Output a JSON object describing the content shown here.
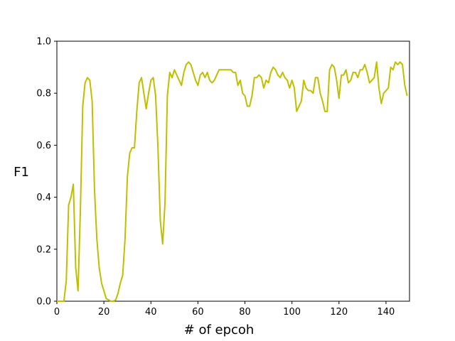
{
  "chart_data": {
    "type": "line",
    "xlabel": "# of epcoh",
    "ylabel": "F1",
    "x": [
      0,
      1,
      2,
      3,
      4,
      5,
      6,
      7,
      8,
      9,
      10,
      11,
      12,
      13,
      14,
      15,
      16,
      17,
      18,
      19,
      20,
      21,
      22,
      23,
      24,
      25,
      26,
      27,
      28,
      29,
      30,
      31,
      32,
      33,
      34,
      35,
      36,
      37,
      38,
      39,
      40,
      41,
      42,
      43,
      44,
      45,
      46,
      47,
      48,
      49,
      50,
      51,
      52,
      53,
      54,
      55,
      56,
      57,
      58,
      59,
      60,
      61,
      62,
      63,
      64,
      65,
      66,
      67,
      68,
      69,
      70,
      71,
      72,
      73,
      74,
      75,
      76,
      77,
      78,
      79,
      80,
      81,
      82,
      83,
      84,
      85,
      86,
      87,
      88,
      89,
      90,
      91,
      92,
      93,
      94,
      95,
      96,
      97,
      98,
      99,
      100,
      101,
      102,
      103,
      104,
      105,
      106,
      107,
      108,
      109,
      110,
      111,
      112,
      113,
      114,
      115,
      116,
      117,
      118,
      119,
      120,
      121,
      122,
      123,
      124,
      125,
      126,
      127,
      128,
      129,
      130,
      131,
      132,
      133,
      134,
      135,
      136,
      137,
      138,
      139,
      140,
      141,
      142,
      143,
      144,
      145,
      146,
      147,
      148,
      149
    ],
    "series": [
      {
        "color": "#bfbf00",
        "values": [
          0,
          0,
          0,
          0,
          0.08,
          0.37,
          0.4,
          0.45,
          0.13,
          0.04,
          0.35,
          0.75,
          0.84,
          0.86,
          0.85,
          0.77,
          0.43,
          0.24,
          0.13,
          0.07,
          0.04,
          0.01,
          0.005,
          0,
          0,
          0.005,
          0.03,
          0.07,
          0.1,
          0.24,
          0.48,
          0.57,
          0.59,
          0.59,
          0.73,
          0.84,
          0.86,
          0.8,
          0.74,
          0.8,
          0.85,
          0.86,
          0.79,
          0.59,
          0.31,
          0.22,
          0.38,
          0.79,
          0.88,
          0.86,
          0.89,
          0.87,
          0.85,
          0.83,
          0.88,
          0.91,
          0.92,
          0.91,
          0.88,
          0.85,
          0.83,
          0.87,
          0.88,
          0.86,
          0.88,
          0.85,
          0.84,
          0.85,
          0.87,
          0.89,
          0.89,
          0.89,
          0.89,
          0.89,
          0.89,
          0.88,
          0.88,
          0.83,
          0.85,
          0.8,
          0.79,
          0.75,
          0.75,
          0.79,
          0.86,
          0.86,
          0.87,
          0.86,
          0.82,
          0.85,
          0.84,
          0.88,
          0.9,
          0.89,
          0.87,
          0.86,
          0.88,
          0.86,
          0.85,
          0.82,
          0.85,
          0.82,
          0.73,
          0.75,
          0.77,
          0.85,
          0.82,
          0.81,
          0.81,
          0.8,
          0.86,
          0.86,
          0.8,
          0.77,
          0.73,
          0.73,
          0.89,
          0.91,
          0.9,
          0.85,
          0.78,
          0.87,
          0.87,
          0.89,
          0.84,
          0.85,
          0.88,
          0.88,
          0.86,
          0.89,
          0.89,
          0.91,
          0.88,
          0.84,
          0.85,
          0.86,
          0.92,
          0.82,
          0.76,
          0.8,
          0.81,
          0.82,
          0.9,
          0.89,
          0.92,
          0.91,
          0.92,
          0.91,
          0.83,
          0.79
        ]
      }
    ],
    "xlim": [
      0,
      150
    ],
    "ylim": [
      0,
      1
    ],
    "xticks": [
      0,
      20,
      40,
      60,
      80,
      100,
      120,
      140
    ],
    "yticks": [
      {
        "value": 0,
        "label": "0.0"
      },
      {
        "value": 0.2,
        "label": "0.2"
      },
      {
        "value": 0.4,
        "label": "0.4"
      },
      {
        "value": 0.6,
        "label": "0.6"
      },
      {
        "value": 0.8,
        "label": "0.8"
      },
      {
        "value": 1,
        "label": "1.0"
      }
    ],
    "grid": false
  }
}
